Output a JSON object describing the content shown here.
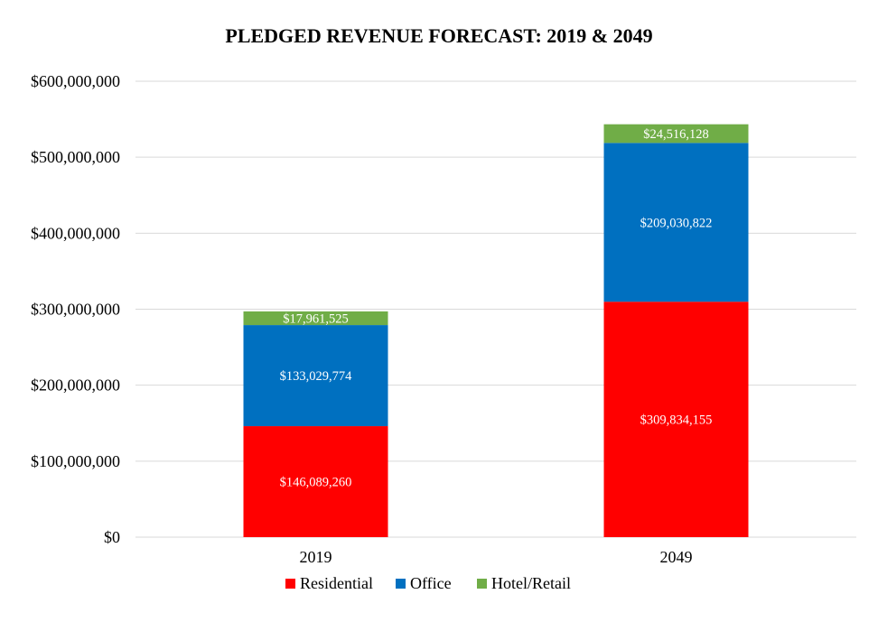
{
  "chart_data": {
    "type": "bar",
    "stacked": true,
    "title": "PLEDGED REVENUE FORECAST:  2019 & 2049",
    "categories": [
      "2019",
      "2049"
    ],
    "series": [
      {
        "name": "Residential",
        "color": "#FF0000",
        "values": [
          146089260,
          309834155
        ],
        "labels": [
          "$146,089,260",
          "$309,834,155"
        ]
      },
      {
        "name": "Office",
        "color": "#0070C0",
        "values": [
          133029774,
          209030822
        ],
        "labels": [
          "$133,029,774",
          "$209,030,822"
        ]
      },
      {
        "name": "Hotel/Retail",
        "color": "#70AD47",
        "values": [
          17961525,
          24516128
        ],
        "labels": [
          "$17,961,525",
          "$24,516,128"
        ]
      }
    ],
    "ylim": [
      0,
      600000000
    ],
    "yticks": [
      0,
      100000000,
      200000000,
      300000000,
      400000000,
      500000000,
      600000000
    ],
    "ytick_labels": [
      "$0",
      "$100,000,000",
      "$200,000,000",
      "$300,000,000",
      "$400,000,000",
      "$500,000,000",
      "$600,000,000"
    ],
    "grid": true,
    "legend_position": "bottom"
  }
}
